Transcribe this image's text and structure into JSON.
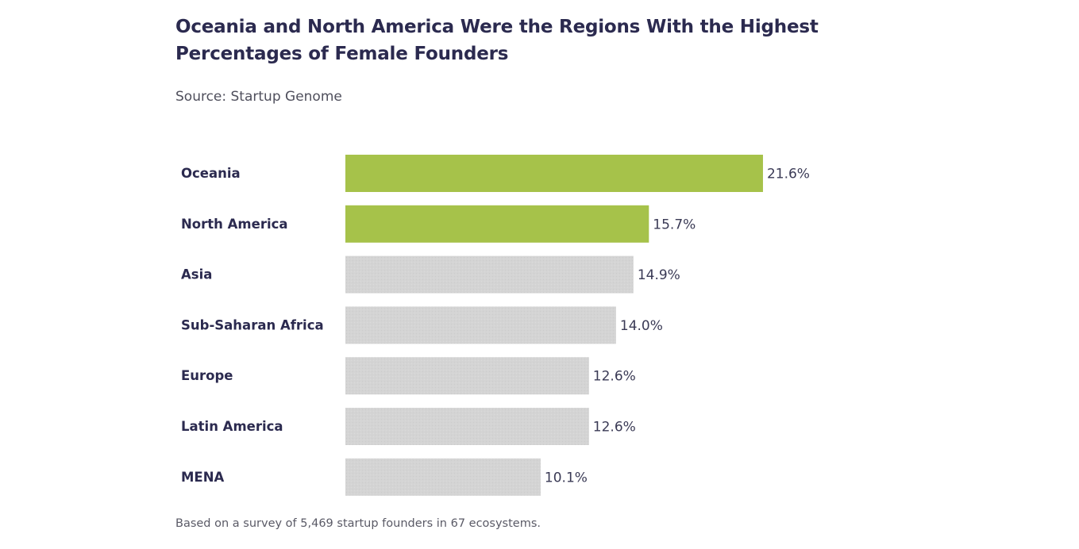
{
  "title": "Oceania and North America Were the Regions With the Highest Percentages of Female Founders",
  "source": "Source: Startup Genome",
  "footnote": "Based on a survey of 5,469 startup founders in 67 ecosystems.",
  "colors": {
    "highlight": "#a6c24a",
    "default": "#d4d4d4",
    "text": "#2b2a4f"
  },
  "chart_data": {
    "type": "bar",
    "orientation": "horizontal",
    "title": "Oceania and North America Were the Regions With the Highest Percentages of Female Founders",
    "xlabel": "",
    "ylabel": "",
    "categories": [
      "Oceania",
      "North America",
      "Asia",
      "Sub-Saharan Africa",
      "Europe",
      "Latin America",
      "MENA"
    ],
    "values": [
      21.6,
      15.7,
      14.9,
      14.0,
      12.6,
      12.6,
      10.1
    ],
    "value_labels": [
      "21.6%",
      "15.7%",
      "14.9%",
      "14.0%",
      "12.6%",
      "12.6%",
      "10.1%"
    ],
    "highlighted": [
      true,
      true,
      false,
      false,
      false,
      false,
      false
    ],
    "xlim": [
      0,
      22
    ],
    "grid": false,
    "legend": "none"
  }
}
